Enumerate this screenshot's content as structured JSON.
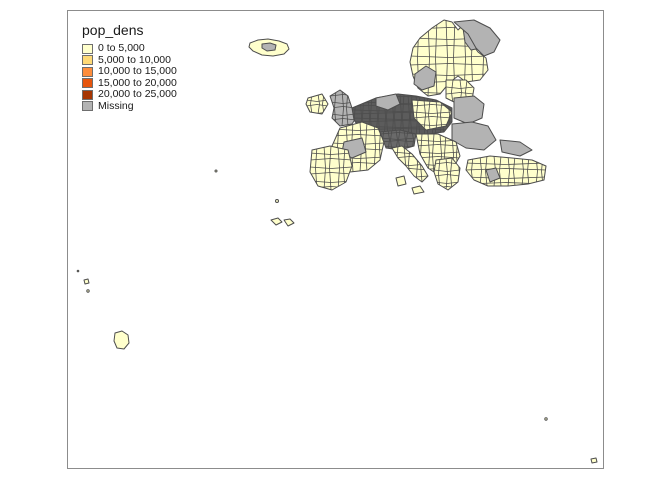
{
  "legend": {
    "title": "pop_dens",
    "items": [
      {
        "label": "0 to 5,000",
        "color": "#ffffcc",
        "min": 0,
        "max": 5000
      },
      {
        "label": "5,000 to 10,000",
        "color": "#fed976",
        "min": 5000,
        "max": 10000
      },
      {
        "label": "10,000 to 15,000",
        "color": "#fd8d3c",
        "min": 10000,
        "max": 15000
      },
      {
        "label": "15,000 to 20,000",
        "color": "#e6550d",
        "min": 15000,
        "max": 20000
      },
      {
        "label": "20,000 to 25,000",
        "color": "#a63603",
        "min": 20000,
        "max": 25000
      },
      {
        "label": "Missing",
        "color": "#b3b3b3"
      }
    ]
  },
  "colors": {
    "border": "#4d4d4d",
    "frame": "#8c8c8c",
    "background": "#ffffff"
  }
}
